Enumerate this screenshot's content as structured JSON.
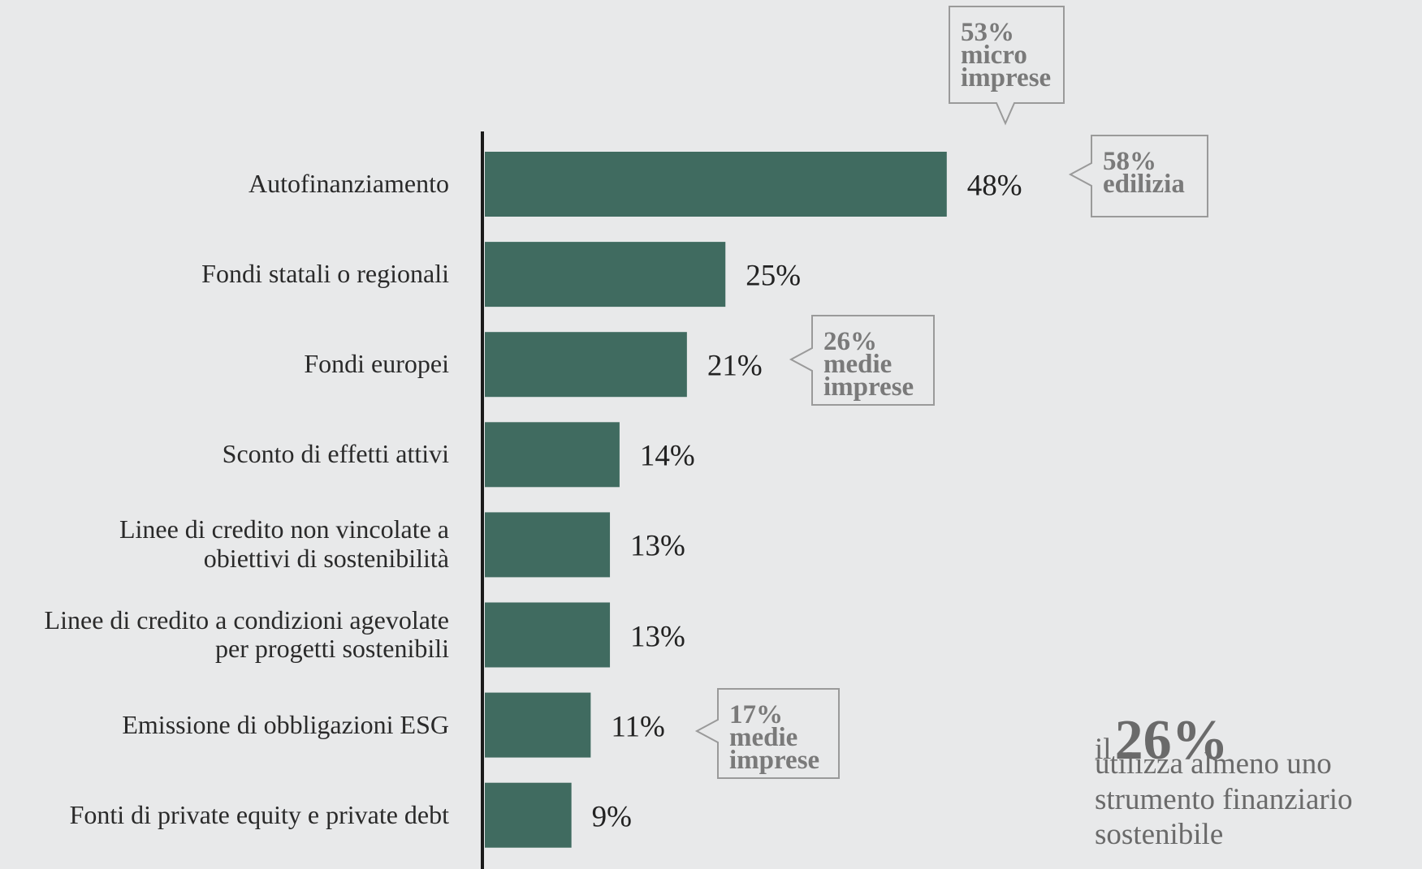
{
  "chart_data": {
    "type": "bar",
    "orientation": "horizontal",
    "color": "#406b60",
    "categories": [
      "Autofinanziamento",
      "Fondi statali o regionali",
      "Fondi europei",
      "Sconto di effetti attivi",
      "Linee di credito non vincolate a\nobiettivi di sostenibilità",
      "Linee di credito a condizioni agevolate\nper progetti sostenibili",
      "Emissione di obbligazioni ESG",
      "Fonti di private equity e private debt"
    ],
    "values": [
      48,
      25,
      21,
      14,
      13,
      13,
      11,
      9
    ],
    "value_labels": [
      "48%",
      "25%",
      "21%",
      "14%",
      "13%",
      "13%",
      "11%",
      "9%"
    ],
    "annotations": [
      "53%\nmicro\nimprese",
      "58%\nedilizia",
      "26%\nmedie\nimprese",
      "17%\nmedie\nimprese"
    ],
    "note": {
      "prefix": "il",
      "highlight": "26%",
      "text": "utilizza almeno uno\nstrumento finanziario\nsostenibile"
    }
  }
}
